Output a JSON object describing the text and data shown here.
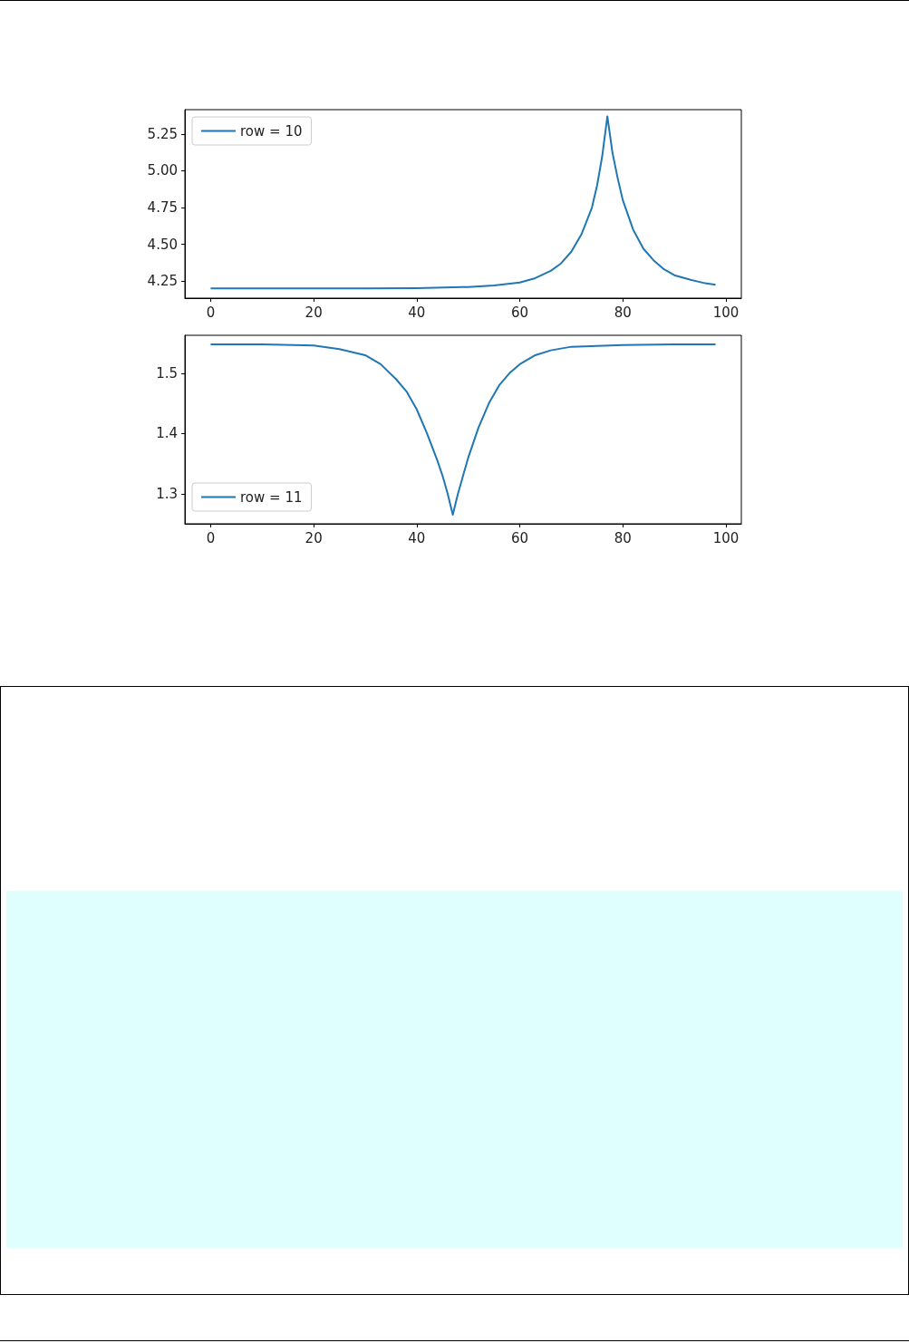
{
  "chart_data": [
    {
      "type": "line",
      "xlim": [
        -5,
        103
      ],
      "ylim": [
        4.134,
        5.416
      ],
      "xticks": [
        0,
        20,
        40,
        60,
        80,
        100
      ],
      "yticks": [
        4.25,
        {
          "value": 4.5,
          "label": "4.50"
        },
        {
          "value": 4.75,
          "label": "4.75"
        },
        {
          "value": 5,
          "label": "5.00"
        },
        {
          "value": 5.25,
          "label": "5.25"
        }
      ],
      "legend": "top left",
      "grid": false,
      "marker": "none",
      "line_style": "solid",
      "series": [
        {
          "name": "row = 10",
          "color": "#1f77b4",
          "x": [
            0,
            10,
            20,
            30,
            40,
            50,
            55,
            60,
            63,
            66,
            68,
            70,
            72,
            74,
            75,
            76,
            77,
            78,
            79,
            80,
            82,
            84,
            86,
            88,
            90,
            93,
            96,
            98
          ],
          "values": [
            4.2,
            4.2,
            4.2,
            4.2,
            4.202,
            4.21,
            4.22,
            4.24,
            4.27,
            4.32,
            4.37,
            4.45,
            4.57,
            4.75,
            4.9,
            5.1,
            5.37,
            5.12,
            4.95,
            4.8,
            4.6,
            4.47,
            4.39,
            4.33,
            4.29,
            4.26,
            4.235,
            4.225
          ]
        }
      ]
    },
    {
      "type": "line",
      "xlim": [
        -5,
        103
      ],
      "ylim": [
        1.25,
        1.563
      ],
      "xticks": [
        0,
        20,
        40,
        60,
        80,
        100
      ],
      "yticks": [
        1.3,
        1.4,
        1.5
      ],
      "legend": "bottom left",
      "grid": false,
      "marker": "none",
      "line_style": "solid",
      "series": [
        {
          "name": "row = 11",
          "color": "#1f77b4",
          "x": [
            0,
            10,
            20,
            25,
            30,
            33,
            36,
            38,
            40,
            42,
            44,
            45,
            46,
            47,
            48,
            49,
            50,
            52,
            54,
            56,
            58,
            60,
            63,
            66,
            70,
            80,
            90,
            98
          ],
          "values": [
            1.548,
            1.548,
            1.546,
            1.54,
            1.53,
            1.515,
            1.49,
            1.47,
            1.44,
            1.4,
            1.355,
            1.33,
            1.3,
            1.265,
            1.3,
            1.33,
            1.36,
            1.41,
            1.45,
            1.48,
            1.5,
            1.515,
            1.53,
            1.538,
            1.544,
            1.547,
            1.548,
            1.548
          ]
        }
      ]
    }
  ]
}
